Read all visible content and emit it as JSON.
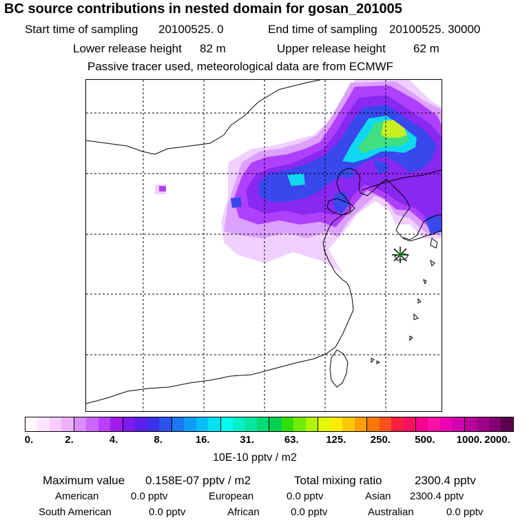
{
  "header": {
    "title": "BC  source contributions in nested domain for gosan_201005",
    "sampling": {
      "start_label": "Start time of sampling",
      "start_value": "20100525.     0",
      "end_label": "End time of sampling",
      "end_value": "20100525. 30000"
    },
    "release": {
      "lower_label": "Lower release height",
      "lower_value": "82 m",
      "upper_label": "Upper release height",
      "upper_value": "62 m"
    },
    "note": "Passive tracer used, meteorological data are from ECMWF"
  },
  "colorbar": {
    "ticks": [
      "0.",
      "2.",
      "4.",
      "8.",
      "16.",
      "31.",
      "63.",
      "125.",
      "250.",
      "500.",
      "1000.",
      "2000."
    ],
    "colors": [
      "#fff8ff",
      "#ffe4ff",
      "#f8ccff",
      "#ecb0ff",
      "#dc8cff",
      "#cc66ff",
      "#b940ff",
      "#a21cf2",
      "#7a1cf2",
      "#5a20f0",
      "#3c30ea",
      "#2e52f0",
      "#1c78f4",
      "#0a9cf8",
      "#00bef8",
      "#00e0f4",
      "#00ffee",
      "#00f0c8",
      "#00e6a0",
      "#00dc78",
      "#00d050",
      "#30e000",
      "#70ec00",
      "#b0f400",
      "#e0f800",
      "#ffec00",
      "#ffc800",
      "#ffa000",
      "#ff7800",
      "#ff5020",
      "#ff2040",
      "#ff1060",
      "#ff0090",
      "#ff10a8",
      "#ee00b4",
      "#d000b0",
      "#b80098",
      "#9c0086",
      "#820072",
      "#5c0050"
    ],
    "unit_label": "10E-10 pptv / m2"
  },
  "summary": {
    "max_label": "Maximum value",
    "max_value": "0.158E-07 pptv / m2",
    "total_label": "Total mixing ratio",
    "total_value": "2300.4 pptv"
  },
  "regions": [
    {
      "name": "American",
      "value": "0.0 pptv"
    },
    {
      "name": "European",
      "value": "0.0 pptv"
    },
    {
      "name": "Asian",
      "value": "2300.4 pptv"
    },
    {
      "name": "South American",
      "value": "0.0 pptv"
    },
    {
      "name": "African",
      "value": "0.0 pptv"
    },
    {
      "name": "Australian",
      "value": "0.0 pptv"
    }
  ],
  "map_colors": {
    "light": "#f0d0ff",
    "lilac": "#dca0ff",
    "purple": "#b040ff",
    "violet": "#8828f0",
    "blue": "#3848ec",
    "cyan": "#10d8f0",
    "green": "#40e080",
    "yellow": "#c8f020",
    "station": "#00aa00"
  }
}
